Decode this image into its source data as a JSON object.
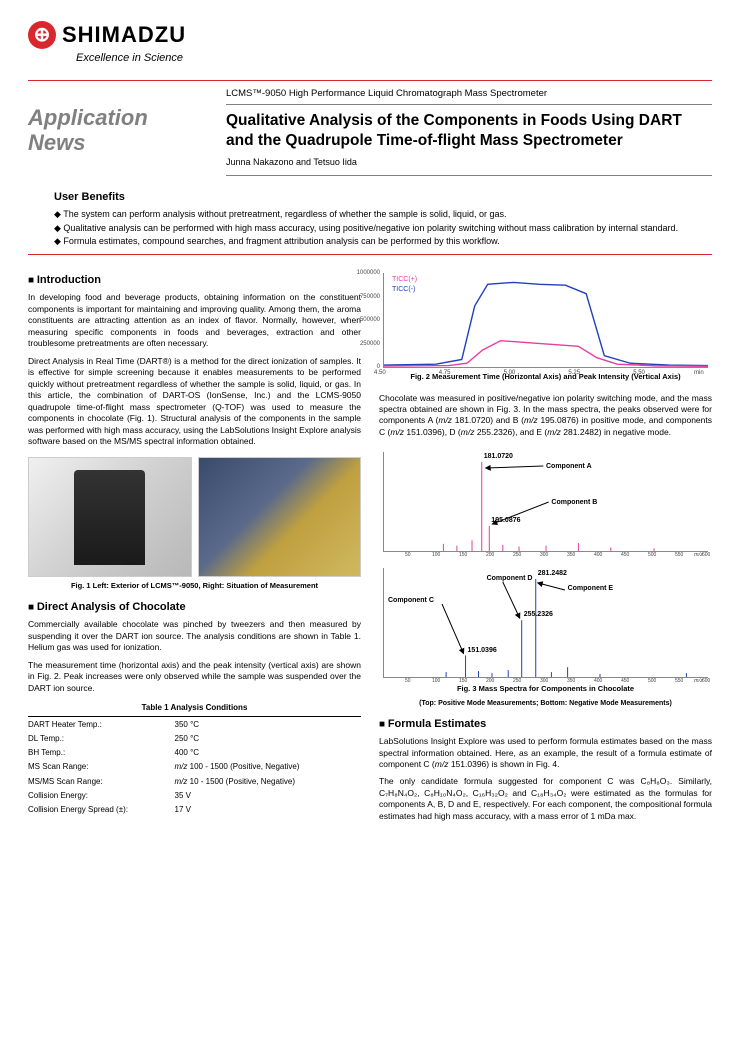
{
  "brand": {
    "name": "SHIMADZU",
    "tagline": "Excellence in Science"
  },
  "header": {
    "app_news": "Application News",
    "product": "LCMS™-9050 High Performance Liquid Chromatograph Mass Spectrometer",
    "title": "Qualitative Analysis of the Components in Foods Using DART and the Quadrupole Time-of-flight Mass Spectrometer",
    "authors": "Junna Nakazono and Tetsuo Iida"
  },
  "benefits": {
    "title": "User Benefits",
    "items": [
      "The system can perform analysis without pretreatment, regardless of whether the sample is solid, liquid, or gas.",
      "Qualitative analysis can be performed with high mass accuracy, using positive/negative ion polarity switching without mass calibration by internal standard.",
      "Formula estimates, compound searches, and fragment attribution analysis can be performed by this workflow."
    ]
  },
  "sections": {
    "intro_h": "Introduction",
    "intro_p1": "In developing food and beverage products, obtaining information on the constituent components is important for maintaining and improving quality. Among them, the aroma constituents are attracting attention as an index of flavor. Normally, however, when measuring specific components in foods and beverages, extraction and other troublesome pretreatments are often necessary.",
    "intro_p2": "Direct Analysis in Real Time (DART®) is a method for the direct ionization of samples. It is effective for simple screening because it enables measurements to be performed quickly without pretreatment regardless of whether the sample is solid, liquid, or gas. In this article, the combination of DART-OS (IonSense, Inc.) and the LCMS-9050 quadrupole time-of-flight mass spectrometer (Q-TOF) was used to measure the components in chocolate (Fig. 1). Structural analysis of the components in the sample was performed with high mass accuracy, using the LabSolutions Insight Explore analysis software based on the MS/MS spectral information obtained.",
    "fig1_cap": "Fig. 1 Left: Exterior of LCMS™-9050, Right: Situation of Measurement",
    "choc_h": "Direct Analysis of Chocolate",
    "choc_p1": "Commercially available chocolate was pinched by tweezers and then measured by suspending it over the DART ion source. The analysis conditions are shown in Table 1. Helium gas was used for ionization.",
    "choc_p2": "The measurement time (horizontal axis) and the peak intensity (vertical axis) are shown in Fig. 2. Peak increases were only observed while the sample was suspended over the DART ion source.",
    "table1_title": "Table 1 Analysis Conditions",
    "fig2_cap": "Fig. 2 Measurement Time (Horizontal Axis) and Peak Intensity (Vertical Axis)",
    "choc_p3_a": "Chocolate was measured in positive/negative ion polarity switching mode, and the mass spectra obtained are shown in Fig. 3. In the mass spectra, the peaks observed were for components A (",
    "choc_p3_mz1": "m/z",
    "choc_p3_b": " 181.0720) and B (",
    "choc_p3_c": " 195.0876) in positive mode, and components C (",
    "choc_p3_d": " 151.0396), D (",
    "choc_p3_e": " 255.2326), and E (",
    "choc_p3_f": " 281.2482) in negative mode.",
    "fig3_cap": "Fig. 3 Mass Spectra for Components in Chocolate",
    "fig3_sub": "(Top: Positive Mode Measurements; Bottom: Negative Mode Measurements)",
    "form_h": "Formula Estimates",
    "form_p1_a": "LabSolutions Insight Explore was used to perform formula estimates based on the mass spectral information obtained. Here, as an example, the result of a formula estimate of component C (",
    "form_p1_b": " 151.0396) is shown in Fig. 4.",
    "form_p2": "The only candidate formula suggested for component C was C₈H₈O₃. Similarly, C₇H₈N₄O₂, C₈H₁₀N₄O₂, C₁₆H₃₂O₂ and C₁₈H₃₄O₂ were estimated as the formulas for components A, B, D and E, respectively. For each component, the compositional formula estimates had high mass accuracy, with a mass error of 1 mDa max."
  },
  "table1": {
    "rows": [
      [
        "DART Heater Temp.:",
        "350 °C"
      ],
      [
        "DL Temp.:",
        "250 °C"
      ],
      [
        "BH Temp.:",
        "400 °C"
      ],
      [
        "MS Scan Range:",
        "m/z 100 - 1500 (Positive, Negative)"
      ],
      [
        "MS/MS Scan Range:",
        "m/z 10 - 1500 (Positive, Negative)"
      ],
      [
        "Collision Energy:",
        "35 V"
      ],
      [
        "Collision Energy Spread (±):",
        "17 V"
      ]
    ]
  },
  "fig2": {
    "legend_pos": "TICC(+)",
    "legend_neg": "TICC(-)",
    "color_pos": "#e83ea0",
    "color_neg": "#2040c0",
    "xlim": [
      4.5,
      5.75
    ],
    "xticks": [
      "4.50",
      "4.75",
      "5.00",
      "5.25",
      "5.50"
    ],
    "ylim": [
      0,
      1000000
    ],
    "yticks": [
      "1000000",
      "750000",
      "500000",
      "250000",
      "0"
    ],
    "xunit": "min",
    "series_neg": [
      [
        4.5,
        20000
      ],
      [
        4.7,
        30000
      ],
      [
        4.8,
        80000
      ],
      [
        4.85,
        650000
      ],
      [
        4.9,
        880000
      ],
      [
        5.0,
        900000
      ],
      [
        5.1,
        880000
      ],
      [
        5.2,
        870000
      ],
      [
        5.28,
        780000
      ],
      [
        5.35,
        120000
      ],
      [
        5.45,
        40000
      ],
      [
        5.6,
        20000
      ],
      [
        5.75,
        15000
      ]
    ],
    "series_pos": [
      [
        4.5,
        10000
      ],
      [
        4.75,
        15000
      ],
      [
        4.82,
        40000
      ],
      [
        4.88,
        180000
      ],
      [
        4.95,
        280000
      ],
      [
        5.05,
        260000
      ],
      [
        5.15,
        240000
      ],
      [
        5.25,
        220000
      ],
      [
        5.32,
        100000
      ],
      [
        5.4,
        30000
      ],
      [
        5.55,
        12000
      ],
      [
        5.75,
        8000
      ]
    ]
  },
  "fig3_top": {
    "color": "#e83ea0",
    "xlim": [
      0,
      600
    ],
    "peaks": [
      {
        "mz": 181,
        "h": 1.0,
        "label": "181.0720"
      },
      {
        "mz": 195,
        "h": 0.28,
        "label": "195.0876"
      },
      {
        "mz": 110,
        "h": 0.08
      },
      {
        "mz": 135,
        "h": 0.06
      },
      {
        "mz": 163,
        "h": 0.12
      },
      {
        "mz": 220,
        "h": 0.07
      },
      {
        "mz": 250,
        "h": 0.05
      },
      {
        "mz": 300,
        "h": 0.06
      },
      {
        "mz": 360,
        "h": 0.09
      },
      {
        "mz": 420,
        "h": 0.04
      },
      {
        "mz": 500,
        "h": 0.03
      }
    ],
    "ann": {
      "A": "Component A",
      "B": "Component B"
    }
  },
  "fig3_bot": {
    "color": "#2040c0",
    "xlim": [
      0,
      600
    ],
    "peaks": [
      {
        "mz": 151,
        "h": 0.22,
        "label": "151.0396"
      },
      {
        "mz": 255,
        "h": 0.58,
        "label": "255.2326"
      },
      {
        "mz": 281,
        "h": 1.0,
        "label": "281.2482"
      },
      {
        "mz": 115,
        "h": 0.05
      },
      {
        "mz": 175,
        "h": 0.06
      },
      {
        "mz": 200,
        "h": 0.04
      },
      {
        "mz": 230,
        "h": 0.07
      },
      {
        "mz": 310,
        "h": 0.05
      },
      {
        "mz": 340,
        "h": 0.1
      },
      {
        "mz": 400,
        "h": 0.03
      },
      {
        "mz": 560,
        "h": 0.04
      }
    ],
    "ann": {
      "C": "Component C",
      "D": "Component D",
      "E": "Component E"
    }
  }
}
